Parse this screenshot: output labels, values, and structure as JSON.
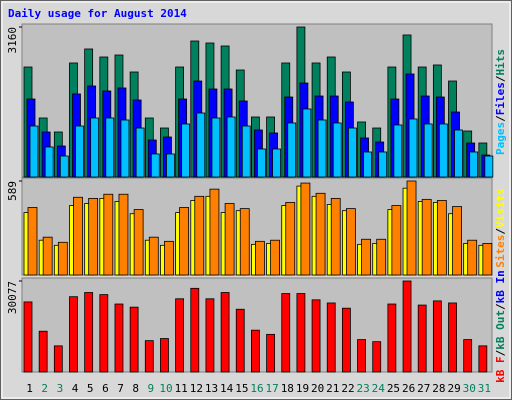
{
  "chart_data": [
    {
      "type": "bar",
      "title": "Daily usage for August 2014",
      "legend_separator": "/",
      "ylim": [
        0,
        3160
      ],
      "yticks": [
        3160
      ],
      "series": [
        {
          "name": "Hits",
          "color": "#00805c",
          "values": [
            2317,
            1243,
            948,
            2402,
            2697,
            2528,
            2570,
            2212,
            1243,
            1032,
            2317,
            2865,
            2823,
            2760,
            2254,
            1264,
            1264,
            2402,
            3160,
            2402,
            2528,
            2212,
            1159,
            1032,
            2317,
            2992,
            2317,
            2360,
            2022,
            969,
            716
          ]
        },
        {
          "name": "Files",
          "color": "#0000ff",
          "values": [
            1643,
            948,
            653,
            1749,
            1917,
            1812,
            1875,
            1622,
            779,
            843,
            1643,
            2022,
            1854,
            1854,
            1601,
            990,
            927,
            1685,
            1980,
            1706,
            1706,
            1580,
            822,
            737,
            1643,
            2170,
            1706,
            1685,
            1369,
            716,
            463
          ]
        },
        {
          "name": "Pages",
          "color": "#00c0ff",
          "values": [
            1074,
            632,
            442,
            1074,
            1243,
            1243,
            1201,
            1032,
            485,
            485,
            1117,
            1348,
            1243,
            1264,
            1074,
            590,
            590,
            1138,
            1433,
            1201,
            1138,
            1032,
            527,
            527,
            1096,
            1222,
            1117,
            1117,
            990,
            527,
            442
          ]
        }
      ]
    },
    {
      "type": "bar",
      "legend_separator": "/",
      "ylim": [
        0,
        589
      ],
      "yticks": [
        589
      ],
      "series": [
        {
          "name": "Visits",
          "color": "#ffff00",
          "values": [
            391,
            218,
            186,
            435,
            448,
            480,
            461,
            384,
            218,
            186,
            391,
            467,
            493,
            391,
            403,
            192,
            198,
            435,
            557,
            493,
            442,
            403,
            192,
            198,
            410,
            544,
            461,
            455,
            384,
            198,
            186
          ]
        },
        {
          "name": "Sites",
          "color": "#ff8000",
          "values": [
            423,
            237,
            205,
            487,
            480,
            506,
            506,
            410,
            237,
            211,
            423,
            493,
            538,
            448,
            416,
            211,
            218,
            455,
            576,
            512,
            480,
            416,
            224,
            224,
            435,
            589,
            474,
            467,
            429,
            218,
            198
          ]
        }
      ]
    },
    {
      "type": "bar",
      "legend_separator": "/",
      "ylim": [
        0,
        30077
      ],
      "yticks": [
        30077
      ],
      "categories": [
        "1",
        "2",
        "3",
        "4",
        "5",
        "6",
        "7",
        "8",
        "9",
        "10",
        "11",
        "12",
        "13",
        "14",
        "15",
        "16",
        "17",
        "18",
        "19",
        "20",
        "21",
        "22",
        "23",
        "24",
        "25",
        "26",
        "27",
        "28",
        "29",
        "30",
        "31"
      ],
      "category_colors": [
        "#000000",
        "#00805c",
        "#00805c",
        "#000000",
        "#000000",
        "#000000",
        "#000000",
        "#000000",
        "#00805c",
        "#00805c",
        "#000000",
        "#000000",
        "#000000",
        "#000000",
        "#000000",
        "#00805c",
        "#00805c",
        "#000000",
        "#000000",
        "#000000",
        "#000000",
        "#000000",
        "#00805c",
        "#00805c",
        "#000000",
        "#000000",
        "#000000",
        "#000000",
        "#000000",
        "#00805c",
        "#00805c"
      ],
      "series": [
        {
          "name": "kB In",
          "color": "#0000ff"
        },
        {
          "name": "kB Out",
          "color": "#00805c"
        },
        {
          "name": "kB F",
          "color": "#ff0000",
          "values": [
            23163,
            13480,
            8640,
            24892,
            26275,
            25583,
            22471,
            21434,
            10369,
            11060,
            24200,
            27657,
            24200,
            26275,
            20742,
            13826,
            12443,
            25929,
            25929,
            23854,
            22817,
            21088,
            10714,
            10023,
            22471,
            30077,
            22125,
            23508,
            22817,
            10714,
            8640
          ]
        }
      ]
    }
  ]
}
